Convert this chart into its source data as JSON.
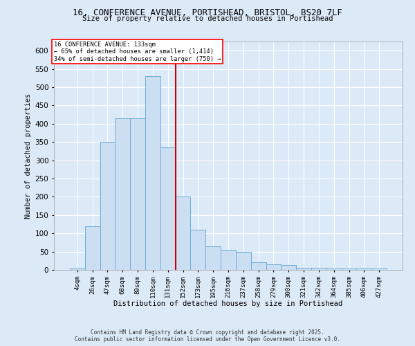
{
  "title_line1": "16, CONFERENCE AVENUE, PORTISHEAD, BRISTOL, BS20 7LF",
  "title_line2": "Size of property relative to detached houses in Portishead",
  "xlabel": "Distribution of detached houses by size in Portishead",
  "ylabel": "Number of detached properties",
  "footnote": "Contains HM Land Registry data © Crown copyright and database right 2025.\nContains public sector information licensed under the Open Government Licence v3.0.",
  "annotation_title": "16 CONFERENCE AVENUE: 133sqm",
  "annotation_line2": "← 65% of detached houses are smaller (1,414)",
  "annotation_line3": "34% of semi-detached houses are larger (750) →",
  "bar_labels": [
    "4sqm",
    "26sqm",
    "47sqm",
    "68sqm",
    "89sqm",
    "110sqm",
    "131sqm",
    "152sqm",
    "173sqm",
    "195sqm",
    "216sqm",
    "237sqm",
    "258sqm",
    "279sqm",
    "300sqm",
    "321sqm",
    "342sqm",
    "364sqm",
    "385sqm",
    "406sqm",
    "427sqm"
  ],
  "bar_values": [
    3,
    120,
    350,
    415,
    415,
    530,
    335,
    200,
    110,
    65,
    55,
    50,
    20,
    15,
    13,
    5,
    5,
    3,
    3,
    3,
    3
  ],
  "bar_color": "#ccdff2",
  "bar_edge_color": "#6baed6",
  "vline_color": "#cc0000",
  "background_color": "#dce9f7",
  "plot_bg_color": "#dce9f7",
  "grid_color": "#ffffff",
  "ylim": [
    0,
    625
  ],
  "yticks": [
    0,
    50,
    100,
    150,
    200,
    250,
    300,
    350,
    400,
    450,
    500,
    550,
    600
  ],
  "vline_pos": 6.5
}
